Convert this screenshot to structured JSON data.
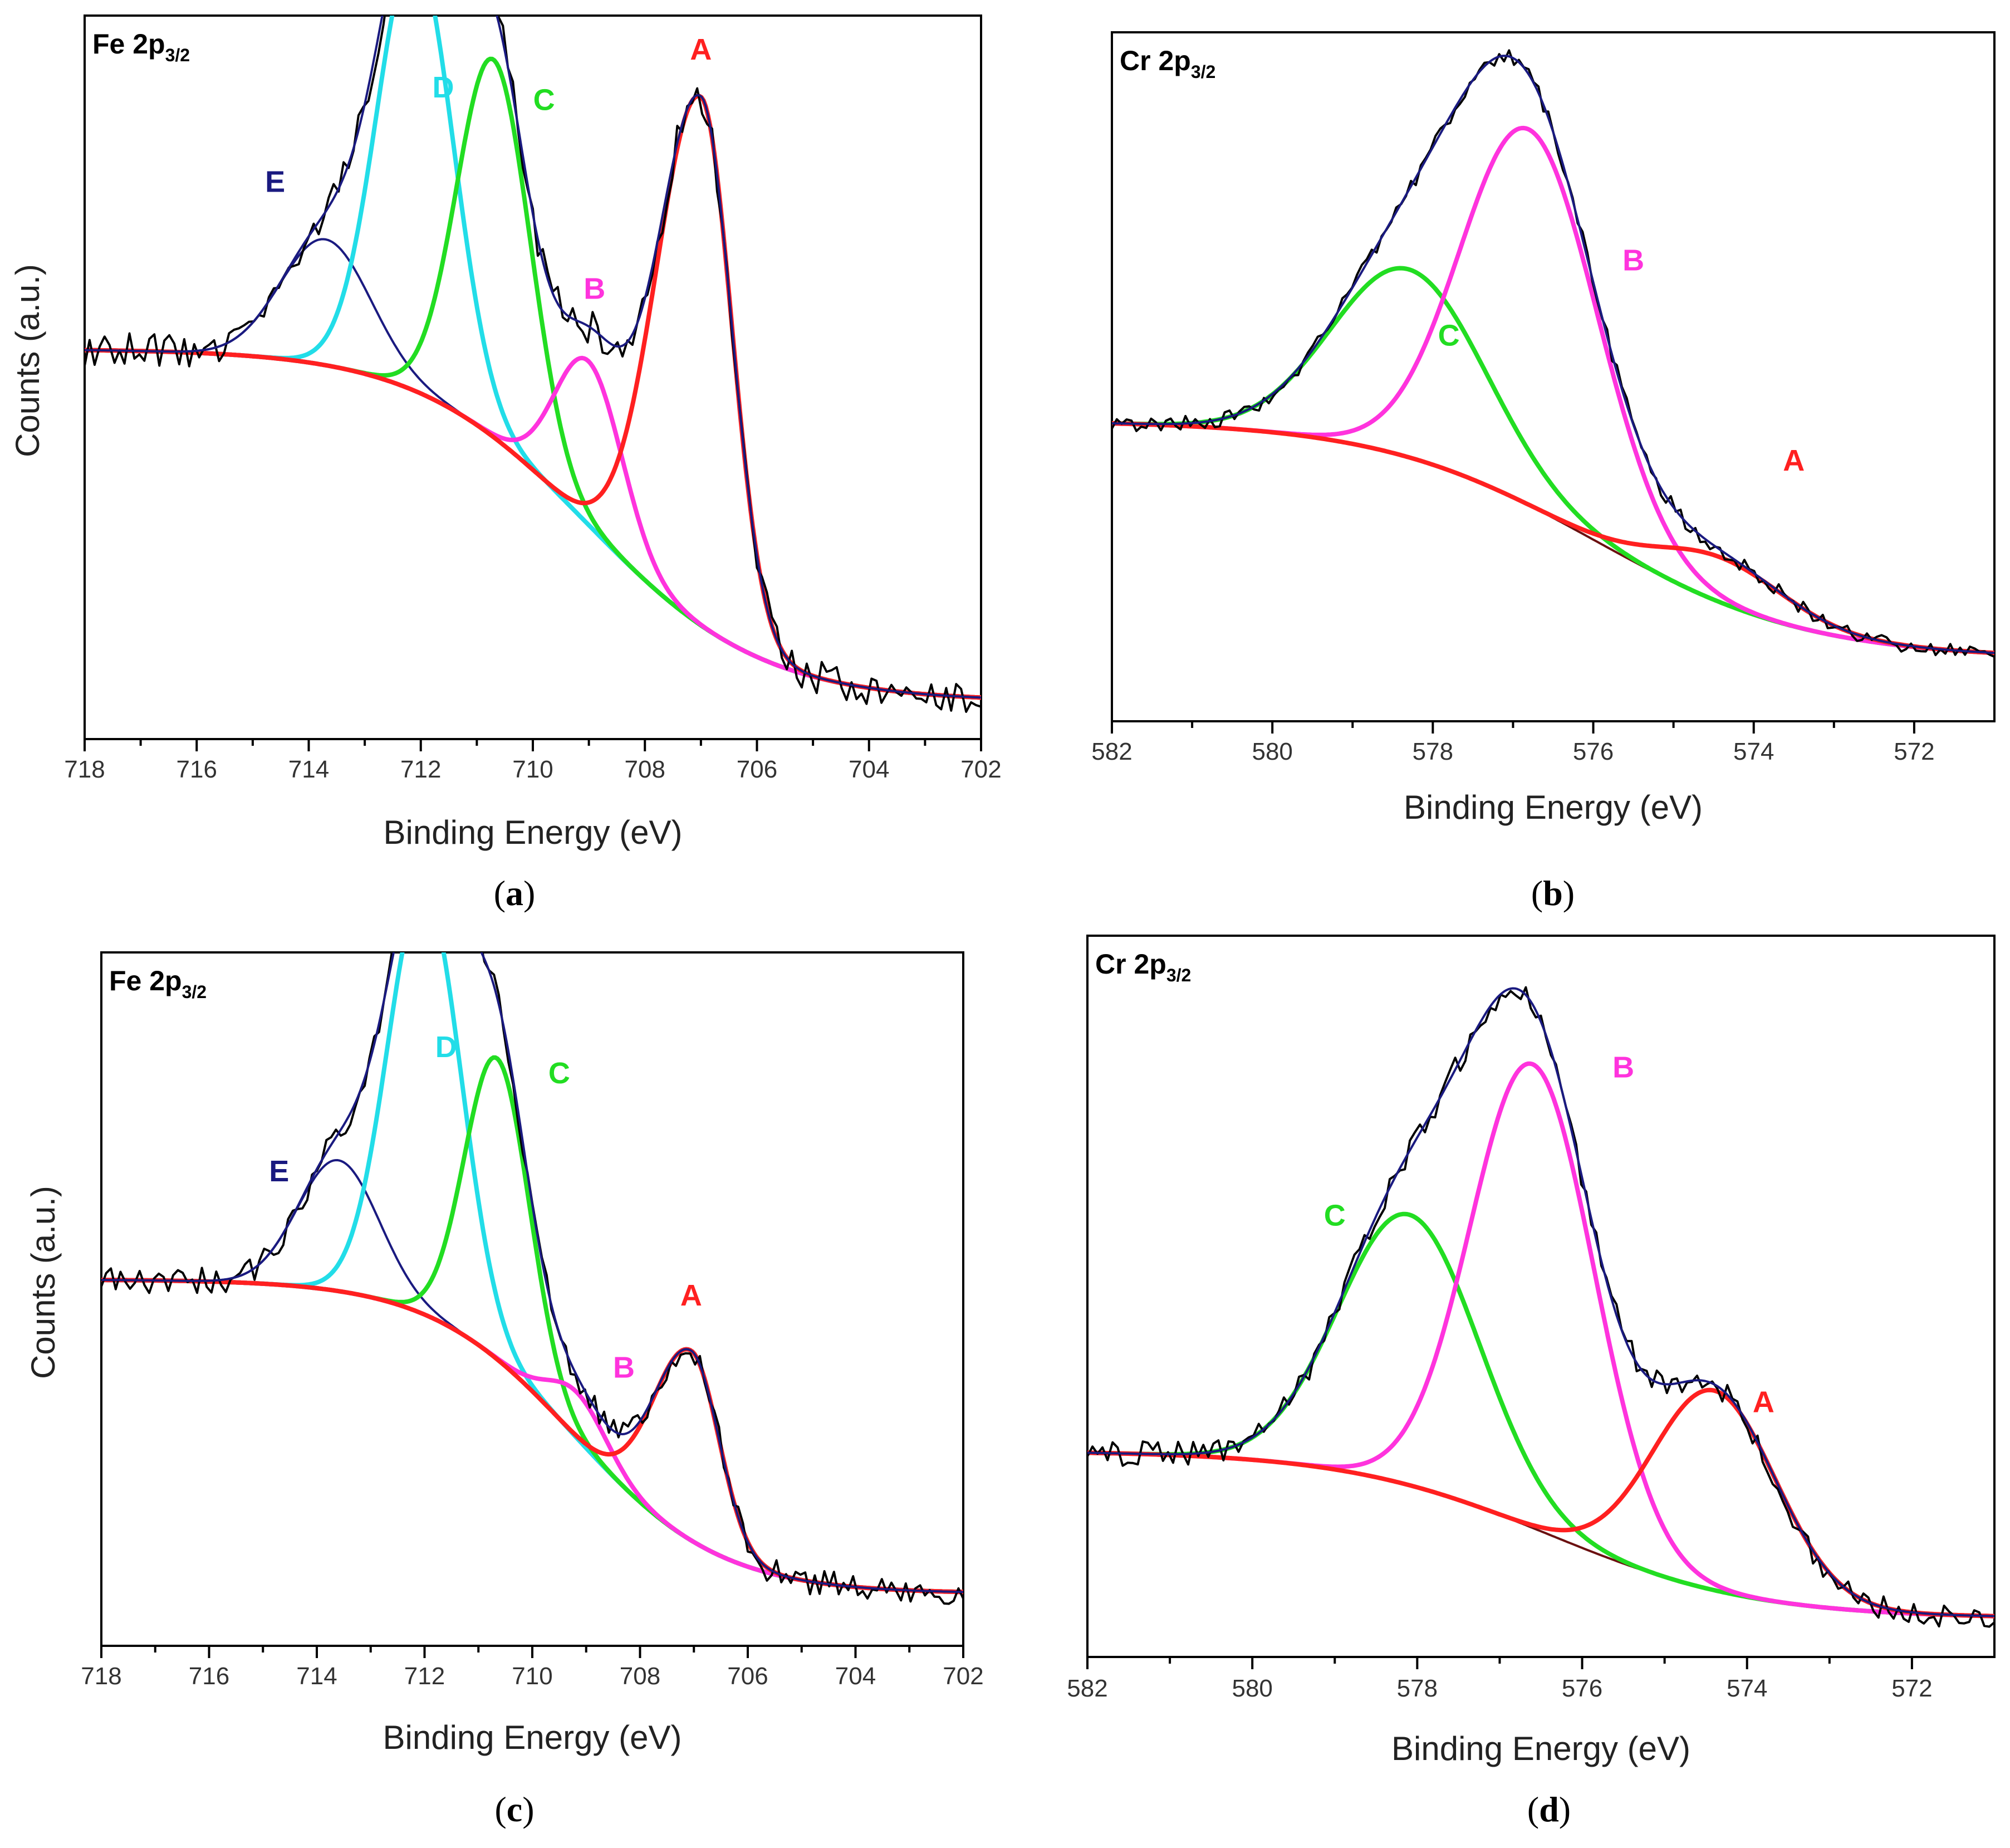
{
  "colors": {
    "raw": "#000000",
    "envelope": "#1a1a80",
    "A": "#ff2020",
    "B": "#ff33dd",
    "C": "#22dd22",
    "D": "#22dde8",
    "E": "#1a1a80",
    "background": "#6b1010"
  },
  "chart_data": [
    {
      "id": "a",
      "type": "line",
      "title": "Fe 2p",
      "title_subscript": "3/2",
      "caption": "a",
      "xlabel": "Binding Energy (eV)",
      "ylabel": "Counts (a.u.)",
      "xlim": [
        718,
        702
      ],
      "ylim": [
        0,
        1.15
      ],
      "xticks": [
        718,
        716,
        714,
        712,
        710,
        708,
        706,
        704,
        702
      ],
      "background": {
        "high": 0.62,
        "low": 0.06,
        "center": 709.0,
        "width": 1.55
      },
      "raw_noise": 0.028,
      "noise_seed": 11,
      "peaks": [
        {
          "label": "A",
          "center": 707.0,
          "height": 0.84,
          "sigma": 0.55,
          "label_x": 707.0,
          "label_y": 1.08
        },
        {
          "label": "B",
          "center": 709.0,
          "height": 0.26,
          "sigma": 0.6,
          "label_x": 708.9,
          "label_y": 0.7
        },
        {
          "label": "C",
          "center": 710.7,
          "height": 0.6,
          "sigma": 0.65,
          "label_x": 709.8,
          "label_y": 1.0
        },
        {
          "label": "D",
          "center": 712.1,
          "height": 0.7,
          "sigma": 0.68,
          "label_x": 711.6,
          "label_y": 1.02
        },
        {
          "label": "E",
          "center": 713.7,
          "height": 0.2,
          "sigma": 0.8,
          "label_x": 714.6,
          "label_y": 0.87
        }
      ],
      "a_asymmetry": 0.45
    },
    {
      "id": "b",
      "type": "line",
      "title": "Cr 2p",
      "title_subscript": "3/2",
      "caption": "b",
      "xlabel": "Binding Energy (eV)",
      "ylabel": "",
      "xlim": [
        582,
        571
      ],
      "ylim": [
        0,
        1.1
      ],
      "xticks": [
        582,
        580,
        578,
        576,
        574,
        572
      ],
      "background": {
        "high": 0.48,
        "low": 0.1,
        "center": 576.0,
        "width": 1.35
      },
      "raw_noise": 0.012,
      "noise_seed": 23,
      "peaks": [
        {
          "label": "A",
          "center": 574.4,
          "height": 0.072,
          "sigma": 0.8,
          "label_x": 573.5,
          "label_y": 0.4
        },
        {
          "label": "B",
          "center": 576.8,
          "height": 0.6,
          "sigma": 0.85,
          "label_x": 575.5,
          "label_y": 0.72
        },
        {
          "label": "C",
          "center": 578.3,
          "height": 0.3,
          "sigma": 0.95,
          "label_x": 577.8,
          "label_y": 0.6
        }
      ]
    },
    {
      "id": "c",
      "type": "line",
      "title": "Fe 2p",
      "title_subscript": "3/2",
      "caption": "c",
      "xlabel": "Binding Energy (eV)",
      "ylabel": "Counts (a.u.)",
      "xlim": [
        718,
        702
      ],
      "ylim": [
        0,
        1.06
      ],
      "xticks": [
        718,
        716,
        714,
        712,
        710,
        708,
        706,
        704,
        702
      ],
      "background": {
        "high": 0.56,
        "low": 0.08,
        "center": 709.2,
        "width": 1.35
      },
      "raw_noise": 0.02,
      "noise_seed": 37,
      "peaks": [
        {
          "label": "A",
          "center": 707.05,
          "height": 0.29,
          "sigma": 0.52,
          "label_x": 707.05,
          "label_y": 0.52
        },
        {
          "label": "B",
          "center": 709.15,
          "height": 0.07,
          "sigma": 0.55,
          "label_x": 708.3,
          "label_y": 0.41
        },
        {
          "label": "C",
          "center": 710.65,
          "height": 0.46,
          "sigma": 0.6,
          "label_x": 709.5,
          "label_y": 0.86
        },
        {
          "label": "D",
          "center": 712.0,
          "height": 0.65,
          "sigma": 0.68,
          "label_x": 711.6,
          "label_y": 0.9
        },
        {
          "label": "E",
          "center": 713.6,
          "height": 0.2,
          "sigma": 0.75,
          "label_x": 714.7,
          "label_y": 0.71
        }
      ],
      "a_asymmetry": 0.35
    },
    {
      "id": "d",
      "type": "line",
      "title": "Cr 2p",
      "title_subscript": "3/2",
      "caption": "d",
      "xlabel": "Binding Energy (eV)",
      "ylabel": "",
      "xlim": [
        582,
        571
      ],
      "ylim": [
        0,
        1.12
      ],
      "xticks": [
        582,
        580,
        578,
        576,
        574,
        572
      ],
      "background": {
        "high": 0.32,
        "low": 0.06,
        "center": 576.4,
        "width": 1.25
      },
      "raw_noise": 0.02,
      "noise_seed": 53,
      "peaks": [
        {
          "label": "A",
          "center": 574.4,
          "height": 0.31,
          "sigma": 0.75,
          "label_x": 573.8,
          "label_y": 0.38
        },
        {
          "label": "B",
          "center": 576.6,
          "height": 0.72,
          "sigma": 0.75,
          "label_x": 575.5,
          "label_y": 0.9
        },
        {
          "label": "C",
          "center": 578.1,
          "height": 0.42,
          "sigma": 0.85,
          "label_x": 579.0,
          "label_y": 0.67
        }
      ]
    }
  ]
}
